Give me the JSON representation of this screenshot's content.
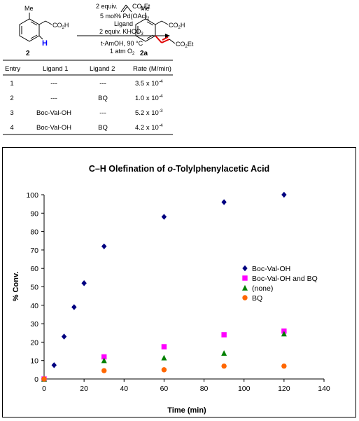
{
  "scheme": {
    "conditions": [
      "2 equiv.",
      "5 mol% Pd(OAc)",
      "Ligand",
      "2 equiv. KHCO",
      "t-AmOH, 90 °C",
      "1 atm O"
    ],
    "acrylate_label": "CO",
    "acrylate_label_sub": "2",
    "acrylate_label_tail": "Et",
    "reactant": {
      "methyl": "Me",
      "acid": "CO",
      "acid_sub": "2",
      "acid_tail": "H",
      "h_label": "H",
      "number": "2"
    },
    "product": {
      "methyl": "Me",
      "acid": "CO",
      "acid_sub": "2",
      "acid_tail": "H",
      "ester": "CO",
      "ester_sub": "2",
      "ester_tail": "Et",
      "number": "2a"
    },
    "subscripts": {
      "pd": "2",
      "khco": "3",
      "o2": "2"
    }
  },
  "table": {
    "headers": [
      "Entry",
      "Ligand 1",
      "Ligand 2",
      "Rate (M/min)"
    ],
    "rows": [
      {
        "entry": "1",
        "ligand1": "---",
        "ligand2": "---",
        "rate_mant": "3.5 x 10",
        "rate_exp": "-4"
      },
      {
        "entry": "2",
        "ligand1": "---",
        "ligand2": "BQ",
        "rate_mant": "1.0 x 10",
        "rate_exp": "-4"
      },
      {
        "entry": "3",
        "ligand1": "Boc-Val-OH",
        "ligand2": "---",
        "rate_mant": "5.2 x 10",
        "rate_exp": "-3"
      },
      {
        "entry": "4",
        "ligand1": "Boc-Val-OH",
        "ligand2": "BQ",
        "rate_mant": "4.2 x 10",
        "rate_exp": "-4"
      }
    ]
  },
  "chart_data": {
    "type": "scatter",
    "title_pre": "C–H Olefination of ",
    "title_italic": "o",
    "title_post": "-Tolylphenylacetic Acid",
    "xlabel": "Time (min)",
    "ylabel": "% Conv.",
    "xlim": [
      0,
      140
    ],
    "ylim": [
      0,
      100
    ],
    "xticks": [
      0,
      20,
      40,
      60,
      80,
      100,
      120,
      140
    ],
    "yticks": [
      0,
      10,
      20,
      30,
      40,
      50,
      60,
      70,
      80,
      90,
      100
    ],
    "grid": false,
    "legend_position": "right",
    "series": [
      {
        "name": "Boc-Val-OH",
        "marker": "diamond",
        "color": "#000080",
        "x": [
          0,
          5,
          10,
          15,
          20,
          30,
          60,
          90,
          120
        ],
        "y": [
          0,
          7.5,
          23,
          39,
          52,
          72,
          88,
          96,
          100
        ]
      },
      {
        "name": "Boc-Val-OH and BQ",
        "marker": "square",
        "color": "#ff00ff",
        "x": [
          0,
          30,
          60,
          90,
          120
        ],
        "y": [
          0,
          12,
          17.5,
          24,
          26
        ]
      },
      {
        "name": "(none)",
        "marker": "triangle",
        "color": "#008000",
        "x": [
          0,
          30,
          60,
          90,
          120
        ],
        "y": [
          0,
          10,
          11.5,
          14,
          24.5
        ]
      },
      {
        "name": "BQ",
        "marker": "circle",
        "color": "#ff6600",
        "x": [
          0,
          30,
          60,
          90,
          120
        ],
        "y": [
          0,
          4.5,
          5,
          7,
          7
        ]
      }
    ]
  }
}
